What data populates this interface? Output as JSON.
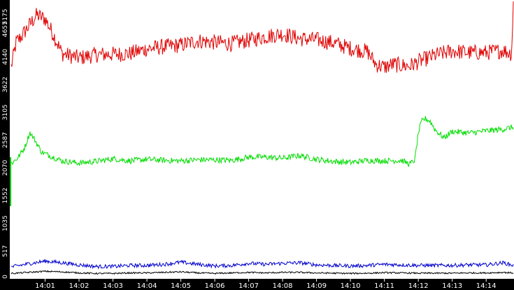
{
  "chart_data": {
    "type": "line",
    "title": "",
    "xlabel": "",
    "ylabel": "",
    "x_tick_labels": [
      "14:01",
      "14:02",
      "14:03",
      "14:04",
      "14:05",
      "14:06",
      "14:07",
      "14:08",
      "14:09",
      "14:10",
      "14:11",
      "14:12",
      "14:13",
      "14:14"
    ],
    "xlim": [
      0.0,
      14.8
    ],
    "y_tick_labels": [
      "5175",
      "4657",
      "4140",
      "3622",
      "3105",
      "2587",
      "2070",
      "1552",
      "1035",
      "517",
      "0"
    ],
    "y_tick_values": [
      5175,
      4657,
      4140,
      3622,
      3105,
      2587,
      2070,
      1552,
      1035,
      517,
      0
    ],
    "ylim": [
      0,
      5175
    ],
    "grid": false,
    "legend": "none",
    "colors": {
      "background": "#ffffff",
      "axis_band": "#000000",
      "axis_text": "#ffffff"
    },
    "series": [
      {
        "color": "#e00000",
        "x": [
          0.0,
          0.15,
          0.3,
          0.5,
          0.75,
          1.0,
          1.25,
          1.5,
          1.75,
          2.0,
          2.5,
          3.0,
          3.5,
          4.0,
          4.5,
          5.0,
          5.5,
          6.0,
          6.5,
          7.0,
          7.5,
          8.0,
          8.5,
          9.0,
          9.5,
          10.0,
          10.5,
          10.75,
          11.0,
          11.25,
          11.5,
          11.75,
          12.0,
          12.5,
          13.0,
          13.5,
          14.0,
          14.5,
          14.75,
          14.8
        ],
        "values": [
          3950,
          4420,
          4520,
          4700,
          4920,
          4850,
          4550,
          4200,
          4160,
          4120,
          4180,
          4190,
          4200,
          4290,
          4330,
          4360,
          4440,
          4410,
          4390,
          4450,
          4520,
          4570,
          4480,
          4460,
          4400,
          4300,
          4240,
          4000,
          3950,
          4000,
          3980,
          3970,
          4050,
          4170,
          4250,
          4220,
          4220,
          4260,
          4200,
          5175
        ]
      },
      {
        "color": "#00dd00",
        "x": [
          0.0,
          0.2,
          0.4,
          0.55,
          0.7,
          0.9,
          1.2,
          1.5,
          2.0,
          2.5,
          3.0,
          3.5,
          4.0,
          4.5,
          5.0,
          5.5,
          6.0,
          6.5,
          7.0,
          7.5,
          8.0,
          8.5,
          9.0,
          9.5,
          10.0,
          10.5,
          11.0,
          11.5,
          11.75,
          11.9,
          12.0,
          12.1,
          12.2,
          12.35,
          12.5,
          12.75,
          13.0,
          13.5,
          14.0,
          14.5,
          14.8
        ],
        "values": [
          2150,
          2260,
          2450,
          2730,
          2590,
          2360,
          2280,
          2200,
          2160,
          2190,
          2240,
          2200,
          2230,
          2210,
          2200,
          2220,
          2220,
          2210,
          2270,
          2270,
          2250,
          2300,
          2230,
          2190,
          2170,
          2210,
          2200,
          2210,
          2140,
          2220,
          2720,
          2940,
          2990,
          2940,
          2780,
          2630,
          2750,
          2720,
          2760,
          2790,
          2830
        ]
      },
      {
        "color": "#0000cc",
        "x": [
          0.0,
          0.5,
          1.0,
          1.5,
          2.0,
          2.5,
          3.0,
          3.5,
          4.0,
          4.5,
          5.0,
          5.5,
          6.0,
          6.5,
          7.0,
          7.5,
          8.0,
          8.5,
          9.0,
          9.5,
          10.0,
          10.5,
          11.0,
          11.5,
          12.0,
          12.5,
          13.0,
          13.5,
          14.0,
          14.5,
          14.8
        ],
        "values": [
          220,
          280,
          330,
          300,
          260,
          230,
          230,
          250,
          250,
          270,
          310,
          270,
          240,
          250,
          290,
          270,
          290,
          300,
          260,
          250,
          240,
          250,
          270,
          260,
          250,
          250,
          250,
          260,
          260,
          300,
          250
        ]
      },
      {
        "color": "#000000",
        "x": [
          0.0,
          0.5,
          1.0,
          1.5,
          2.0,
          2.5,
          3.0,
          3.5,
          4.0,
          4.5,
          5.0,
          5.5,
          6.0,
          6.5,
          7.0,
          7.5,
          8.0,
          8.5,
          9.0,
          9.5,
          10.0,
          10.5,
          11.0,
          11.5,
          12.0,
          12.5,
          13.0,
          13.5,
          14.0,
          14.5,
          14.8
        ],
        "values": [
          100,
          120,
          140,
          130,
          110,
          100,
          100,
          110,
          110,
          120,
          130,
          110,
          100,
          110,
          120,
          110,
          120,
          120,
          110,
          105,
          100,
          105,
          115,
          110,
          105,
          105,
          105,
          110,
          110,
          120,
          110
        ]
      }
    ]
  }
}
